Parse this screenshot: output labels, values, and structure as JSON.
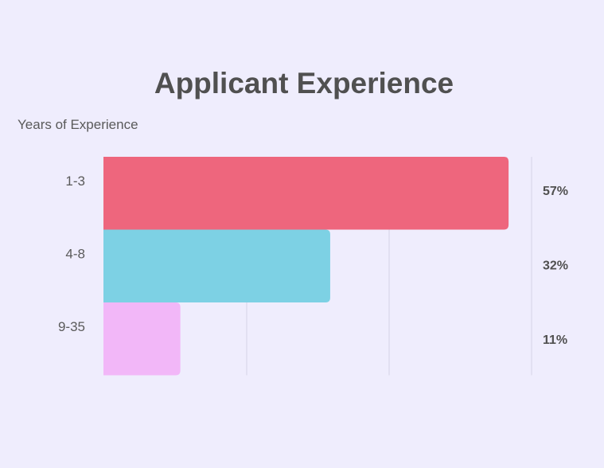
{
  "chart_data": {
    "type": "bar",
    "orientation": "horizontal",
    "title": "Applicant Experience",
    "ylabel": "Years of Experience",
    "xlabel": "",
    "categories": [
      "1-3",
      "4-8",
      "9-35"
    ],
    "values": [
      57,
      32,
      11
    ],
    "value_labels": [
      "57%",
      "32%",
      "11%"
    ],
    "xlim": [
      0,
      60
    ],
    "grid": true,
    "legend": "none",
    "colors": [
      "#ee667d",
      "#7dd1e4",
      "#f2b7f8"
    ],
    "background": "#efedfd"
  }
}
